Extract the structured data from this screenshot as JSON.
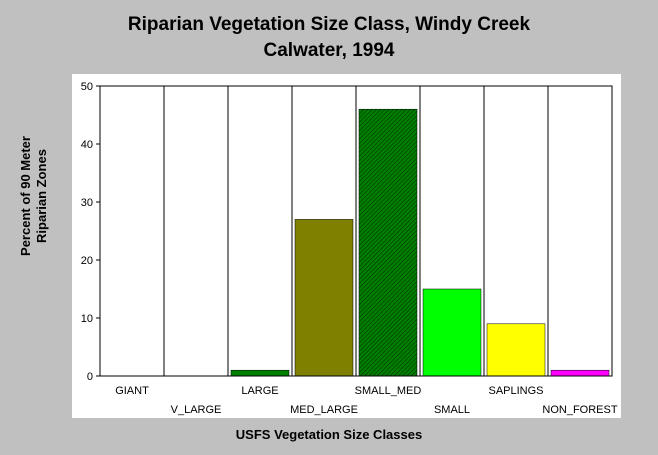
{
  "chart_data": {
    "type": "bar",
    "title_line1": "Riparian Vegetation Size Class, Windy Creek",
    "title_line2": "Calwater, 1994",
    "ylabel_line1": "Percent of 90 Meter",
    "ylabel_line2": "Riparian Zones",
    "xlabel": "USFS Vegetation Size Classes",
    "categories": [
      "GIANT",
      "V_LARGE",
      "LARGE",
      "MED_LARGE",
      "SMALL_MED",
      "SMALL",
      "SAPLINGS",
      "NON_FOREST"
    ],
    "values": [
      0,
      0,
      1,
      27,
      46,
      15,
      9,
      1
    ],
    "colors": [
      "#000000",
      "#000000",
      "#008000",
      "#808000",
      "#008000",
      "#00ff00",
      "#ffff00",
      "#ff00ff"
    ],
    "hatched": [
      false,
      false,
      false,
      false,
      true,
      false,
      false,
      false
    ],
    "ylim": [
      0,
      50
    ],
    "yticks": [
      0,
      10,
      20,
      30,
      40,
      50
    ],
    "grid": "vertical-separators"
  }
}
